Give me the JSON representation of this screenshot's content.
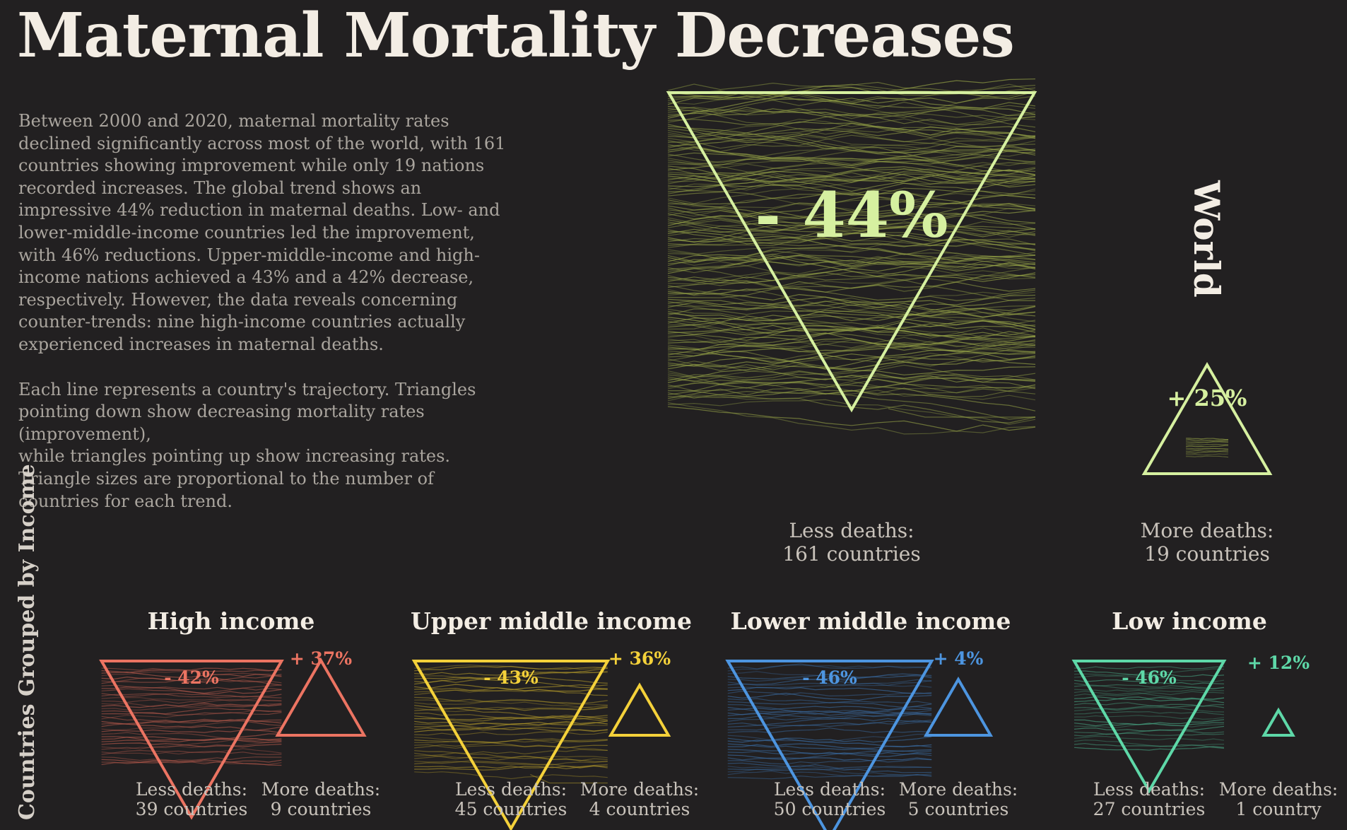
{
  "title": "Maternal Mortality Decreases",
  "intro": {
    "paragraph1": "Between 2000 and 2020, maternal mortality rates declined significantly across most of the world, with 161 countries showing improvement while only 19 nations recorded increases. The global trend shows an impressive 44% reduction in maternal deaths. Low- and lower-middle-income countries led the improvement, with 46% reductions. Upper-middle-income and high-income nations achieved a 43% and a 42% decrease, respectively. However, the data reveals concerning counter-trends: nine high-income countries actually experienced increases in maternal deaths.",
    "paragraph2": "Each line represents a country's trajectory. Triangles pointing down show decreasing mortality rates (improvement),",
    "paragraph3": "while triangles pointing up show increasing rates. Triangle sizes are proportional to the number of countries for each trend."
  },
  "side_label": "Countries Grouped by Income",
  "chart_data": [
    {
      "type": "triangle-proportional",
      "group": "World",
      "color": "#d6f0a0",
      "decrease": {
        "change": "- 44%",
        "caption_line1": "Less deaths:",
        "caption_line2": "161 countries",
        "countries": 161
      },
      "increase": {
        "change": "+ 25%",
        "caption_line1": "More deaths:",
        "caption_line2": "19 countries",
        "countries": 19
      }
    },
    {
      "type": "triangle-proportional",
      "group": "High income",
      "color": "#ec7462",
      "decrease": {
        "change": "- 42%",
        "caption_line1": "Less deaths:",
        "caption_line2": "39 countries",
        "countries": 39
      },
      "increase": {
        "change": "+ 37%",
        "caption_line1": "More deaths:",
        "caption_line2": "9 countries",
        "countries": 9
      }
    },
    {
      "type": "triangle-proportional",
      "group": "Upper middle income",
      "color": "#f4d13a",
      "decrease": {
        "change": "- 43%",
        "caption_line1": "Less deaths:",
        "caption_line2": "45 countries",
        "countries": 45
      },
      "increase": {
        "change": "+ 36%",
        "caption_line1": "More deaths:",
        "caption_line2": "4 countries",
        "countries": 4
      }
    },
    {
      "type": "triangle-proportional",
      "group": "Lower middle income",
      "color": "#4d95e0",
      "decrease": {
        "change": "- 46%",
        "caption_line1": "Less deaths:",
        "caption_line2": "50 countries",
        "countries": 50
      },
      "increase": {
        "change": "+ 4%",
        "caption_line1": "More deaths:",
        "caption_line2": "5 countries",
        "countries": 5
      }
    },
    {
      "type": "triangle-proportional",
      "group": "Low income",
      "color": "#5ed8a8",
      "decrease": {
        "change": "- 46%",
        "caption_line1": "Less deaths:",
        "caption_line2": "27 countries",
        "countries": 27
      },
      "increase": {
        "change": "+ 12%",
        "caption_line1": "More deaths:",
        "caption_line2": "1 country",
        "countries": 1
      }
    }
  ]
}
